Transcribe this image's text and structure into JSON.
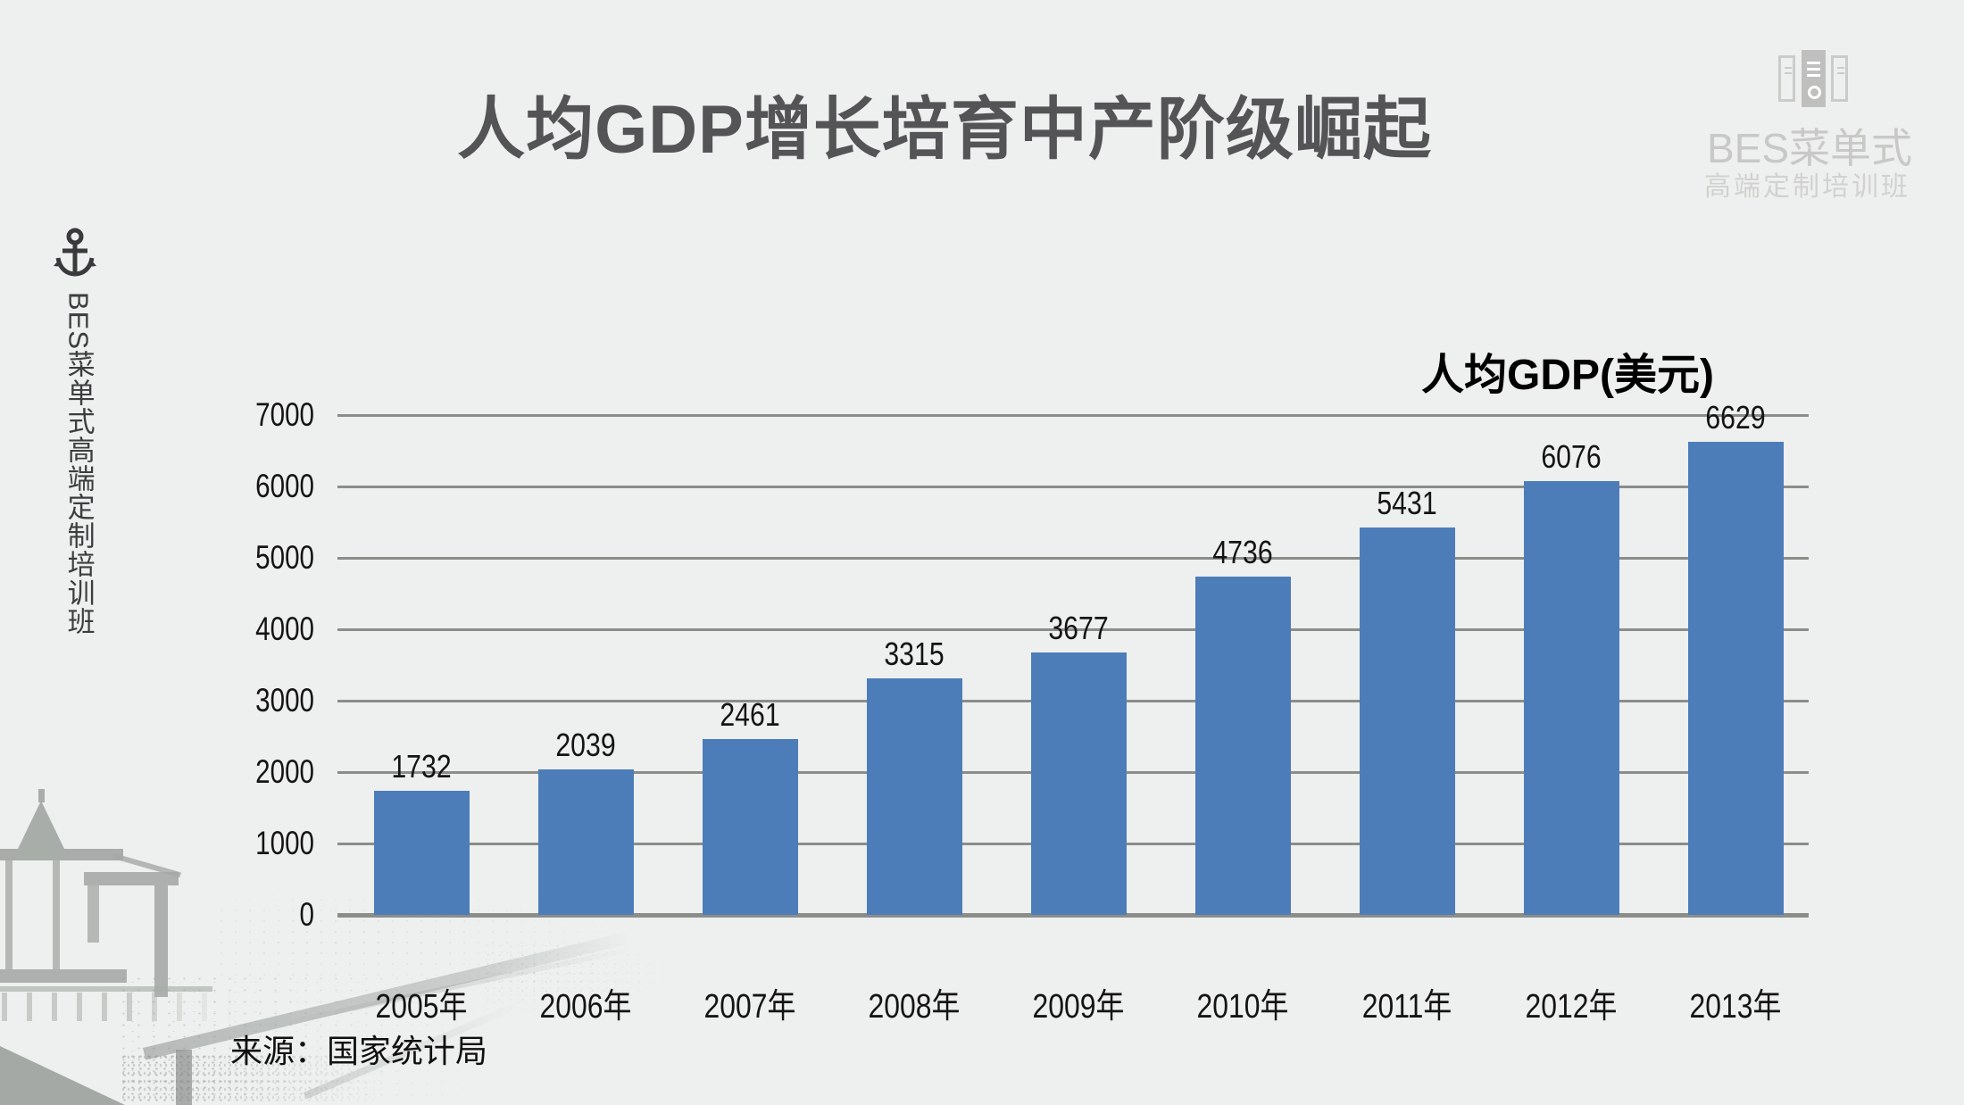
{
  "title": "人均GDP增长培育中产阶级崛起",
  "logo": {
    "icon": "bes-books-icon",
    "main": "BES菜单式",
    "sub": "高端定制培训班"
  },
  "sidebar": {
    "icon": "anchor-icon",
    "text": "BES菜单式高端定制培训班"
  },
  "source": "来源：国家统计局",
  "colors": {
    "background": "#edf0ee",
    "bar": "#4d7db9",
    "grid": "#8b8d8b",
    "title_text": "#545457",
    "logo_gray": "#c8c9c7"
  },
  "chart_data": {
    "type": "bar",
    "title": "人均GDP(美元)",
    "categories": [
      "2005年",
      "2006年",
      "2007年",
      "2008年",
      "2009年",
      "2010年",
      "2011年",
      "2012年",
      "2013年"
    ],
    "values": [
      1732,
      2039,
      2461,
      3315,
      3677,
      4736,
      5431,
      6076,
      6629
    ],
    "xlabel": "",
    "ylabel": "",
    "ylim": [
      0,
      7000
    ],
    "ytick_step": 1000,
    "yticks": [
      0,
      1000,
      2000,
      3000,
      4000,
      5000,
      6000,
      7000
    ],
    "grid": true,
    "legend_position": "top-right",
    "bar_color": "#4d7db9"
  }
}
